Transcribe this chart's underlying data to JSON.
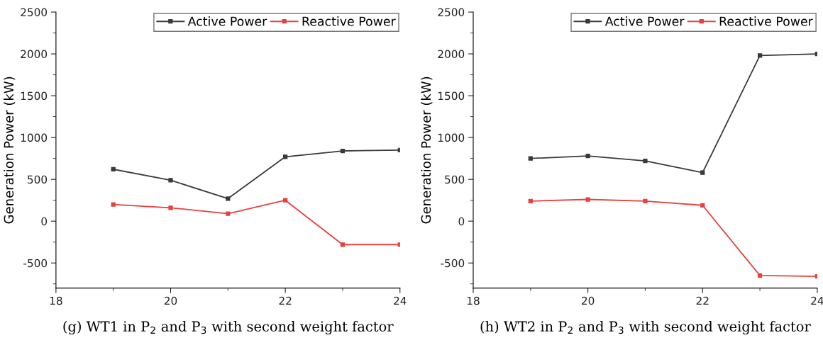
{
  "chart_data": [
    {
      "type": "line",
      "x": [
        19,
        20,
        21,
        22,
        23,
        24
      ],
      "ylabel": "Generation Power (kW)",
      "xlim": [
        18,
        24
      ],
      "ylim": [
        -800,
        2500
      ],
      "xticks": [
        18,
        {
          "value": 19,
          "label": null
        },
        20,
        {
          "value": 21,
          "label": null
        },
        22,
        {
          "value": 23,
          "label": null
        },
        24
      ],
      "yticks": [
        {
          "value": -750,
          "label": null
        },
        -500,
        {
          "value": -250,
          "label": null
        },
        0,
        {
          "value": 250,
          "label": null
        },
        500,
        {
          "value": 750,
          "label": null
        },
        1000,
        {
          "value": 1250,
          "label": null
        },
        1500,
        {
          "value": 1750,
          "label": null
        },
        2000,
        {
          "value": 2250,
          "label": null
        },
        2500
      ],
      "series": [
        {
          "name": "Active Power",
          "color": "#3a3a3a",
          "values": [
            620,
            490,
            270,
            770,
            840,
            850
          ]
        },
        {
          "name": "Reactive Power",
          "color": "#e8403f",
          "values": [
            200,
            160,
            90,
            250,
            -280,
            -280
          ]
        }
      ],
      "marker": "square",
      "legend": "top right",
      "grid": false,
      "annotations": [
        "(g) WT1 in P$_{2}$ and P$_{3}$ with second weight factor"
      ]
    },
    {
      "type": "line",
      "x": [
        19,
        20,
        21,
        22,
        23,
        24
      ],
      "ylabel": "Generation Power (kW)",
      "xlim": [
        18,
        24
      ],
      "ylim": [
        -800,
        2500
      ],
      "xticks": [
        18,
        {
          "value": 19,
          "label": null
        },
        20,
        {
          "value": 21,
          "label": null
        },
        22,
        {
          "value": 23,
          "label": null
        },
        24
      ],
      "yticks": [
        {
          "value": -750,
          "label": null
        },
        -500,
        {
          "value": -250,
          "label": null
        },
        0,
        {
          "value": 250,
          "label": null
        },
        500,
        {
          "value": 750,
          "label": null
        },
        1000,
        {
          "value": 1250,
          "label": null
        },
        1500,
        {
          "value": 1750,
          "label": null
        },
        2000,
        {
          "value": 2250,
          "label": null
        },
        2500
      ],
      "series": [
        {
          "name": "Active Power",
          "color": "#3a3a3a",
          "values": [
            750,
            780,
            720,
            580,
            1980,
            2000
          ]
        },
        {
          "name": "Reactive Power",
          "color": "#e8403f",
          "values": [
            240,
            260,
            240,
            190,
            -650,
            -660
          ]
        }
      ],
      "marker": "square",
      "legend": "top right",
      "grid": false,
      "annotations": [
        "(h) WT2 in P$_{2}$ and P$_{3}$ with second weight factor"
      ]
    }
  ]
}
